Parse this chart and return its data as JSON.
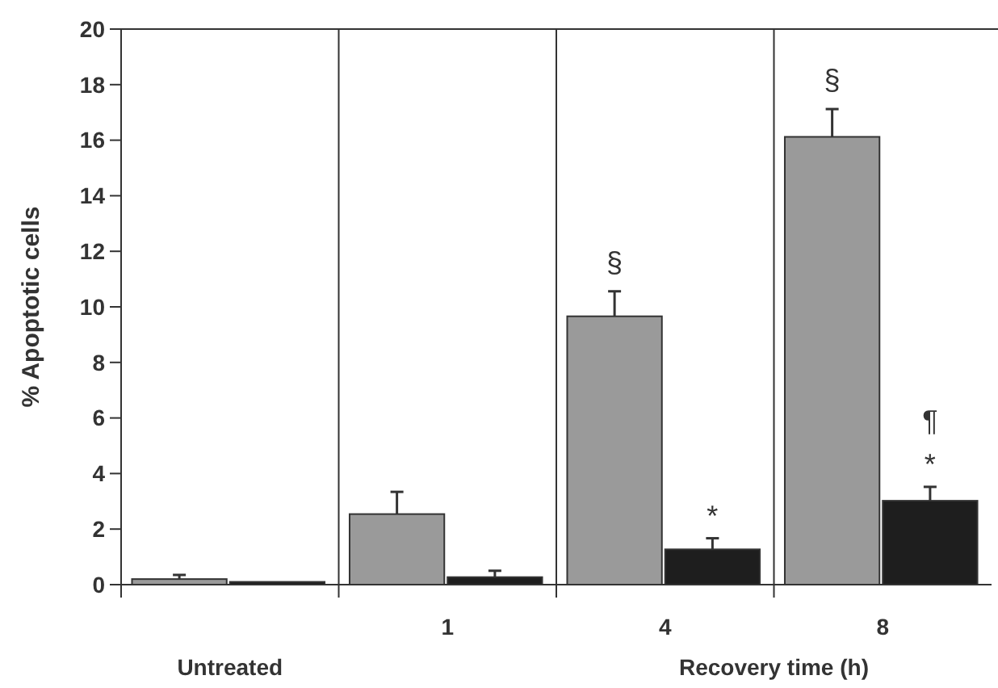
{
  "chart_data": {
    "type": "bar",
    "ylabel": "% Apoptotic cells",
    "xlabel": "Recovery time (h)",
    "categories": [
      null,
      "1",
      "4",
      "8"
    ],
    "series": [
      {
        "color": "#9a9a9a",
        "values": [
          0.2,
          2.54,
          9.66,
          16.12
        ],
        "errors": [
          0.15,
          0.8,
          0.9,
          1.0
        ]
      },
      {
        "color": "#1e1e1e",
        "values": [
          0.1,
          0.27,
          1.27,
          3.02
        ],
        "errors": [
          null,
          0.23,
          0.4,
          0.5
        ]
      }
    ],
    "ylim": [
      0,
      20
    ],
    "yticks": [
      0,
      2,
      4,
      6,
      8,
      10,
      12,
      14,
      16,
      18,
      20
    ],
    "grid": false,
    "annotations": [
      "Untreated",
      {
        "text": "§",
        "x": "4",
        "y": 9.66
      },
      {
        "text": "*",
        "x": "4",
        "y": 1.67
      },
      {
        "text": "§",
        "x": "8",
        "y": 16.12
      },
      {
        "text": "*",
        "x": "8",
        "y": 3.52
      },
      {
        "text": "¶",
        "x": "8",
        "y": 5.1
      }
    ]
  }
}
